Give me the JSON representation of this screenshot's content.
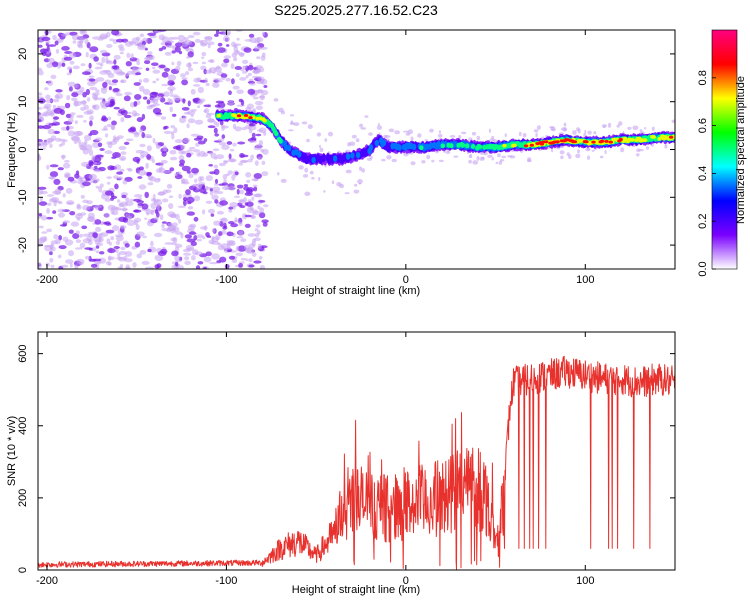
{
  "title": "S225.2025.277.16.52.C23",
  "colors": {
    "line": "#e8312c",
    "frame": "#000000",
    "background": "#ffffff",
    "speckle": "#7b1fe8",
    "speckle_light": "#c6a3f2"
  },
  "chart_data": [
    {
      "type": "heatmap",
      "name": "spectrogram",
      "xlabel": "Height of straight line (km)",
      "ylabel": "Frequency (Hz)",
      "xlim": [
        -205,
        150
      ],
      "ylim": [
        -25,
        25
      ],
      "xticks": [
        -200,
        -100,
        0,
        100
      ],
      "yticks": [
        -20,
        -10,
        0,
        10,
        20
      ],
      "colorbar": {
        "label": "Normalized spectral amplitude",
        "range": [
          0,
          1
        ],
        "ticks": [
          0.0,
          0.2,
          0.4,
          0.6,
          0.8
        ],
        "tick_labels": [
          "0.0",
          "0.2",
          "0.4",
          "0.6",
          "0.8"
        ],
        "stops": [
          "#ffffff",
          "#7a00ff",
          "#0000ff",
          "#00ffff",
          "#00ff00",
          "#ffff00",
          "#ff0000",
          "#ff0080"
        ]
      },
      "ridge": {
        "x": [
          -105,
          -90,
          -80,
          -75,
          -70,
          -65,
          -60,
          -55,
          -50,
          -45,
          -40,
          -35,
          -30,
          -25,
          -20,
          -15,
          -10,
          0,
          10,
          20,
          30,
          40,
          50,
          60,
          70,
          80,
          90,
          100,
          110,
          120,
          130,
          140,
          150
        ],
        "y": [
          7,
          7,
          6.5,
          5,
          2,
          0,
          -1,
          -2,
          -2,
          -2,
          -2,
          -2,
          -1.5,
          -1,
          0,
          2,
          0.5,
          0.5,
          0.5,
          1,
          1,
          0.5,
          0.5,
          1,
          1,
          1.5,
          2,
          1.5,
          1.5,
          2,
          2,
          2.5,
          2.5
        ],
        "peak": [
          0.6,
          0.8,
          0.7,
          0.6,
          0.5,
          0.4,
          0.3,
          0.3,
          0.3,
          0.2,
          0.3,
          0.3,
          0.3,
          0.3,
          0.3,
          0.4,
          0.3,
          0.4,
          0.4,
          0.4,
          0.5,
          0.5,
          0.6,
          0.6,
          0.8,
          0.9,
          0.9,
          0.8,
          0.8,
          0.8,
          0.7,
          0.7,
          0.8
        ]
      },
      "noise_region_x": [
        -205,
        -78
      ]
    },
    {
      "type": "line",
      "name": "snr",
      "xlabel": "Height of straight line (km)",
      "ylabel": "SNR (10 * v/v)",
      "xlim": [
        -205,
        150
      ],
      "ylim": [
        0,
        660
      ],
      "xticks": [
        -200,
        -100,
        0,
        100
      ],
      "yticks": [
        0,
        200,
        400,
        600
      ],
      "envelope": {
        "x": [
          -205,
          -80,
          -70,
          -60,
          -50,
          -40,
          -35,
          -30,
          -20,
          -10,
          0,
          10,
          20,
          30,
          40,
          45,
          50,
          52,
          55,
          58,
          60,
          70,
          80,
          90,
          100,
          110,
          120,
          130,
          140,
          150
        ],
        "y": [
          15,
          20,
          60,
          80,
          40,
          100,
          180,
          200,
          180,
          170,
          180,
          190,
          200,
          230,
          240,
          200,
          80,
          80,
          250,
          450,
          520,
          530,
          540,
          550,
          540,
          530,
          530,
          520,
          530,
          520
        ]
      },
      "dropouts_x": [
        55,
        63,
        66,
        69,
        71,
        74,
        78,
        103,
        113,
        115,
        118,
        127,
        136
      ],
      "dropout_level": 60
    }
  ]
}
